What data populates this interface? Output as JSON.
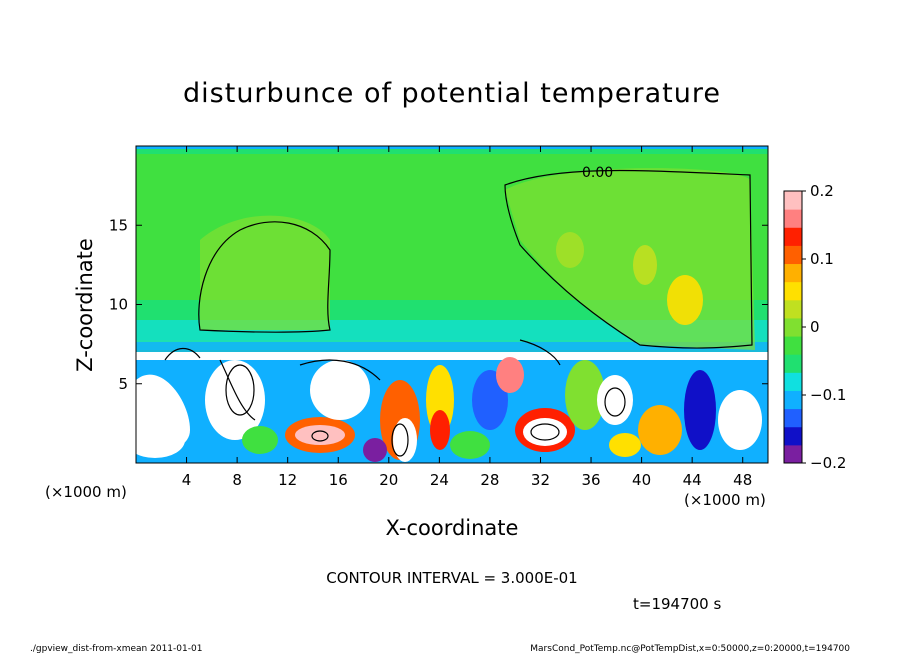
{
  "chart_data": {
    "type": "heatmap",
    "title": "disturbunce of potential temperature",
    "xlabel": "X-coordinate",
    "ylabel": "Z-coordinate",
    "x_unit_left": "(×1000 m)",
    "x_unit_right": "(×1000 m)",
    "xlim": [
      0,
      50
    ],
    "ylim": [
      0,
      20
    ],
    "x_ticks": [
      "4",
      "8",
      "12",
      "16",
      "20",
      "24",
      "28",
      "32",
      "36",
      "40",
      "44",
      "48"
    ],
    "x_tick_values": [
      4,
      8,
      12,
      16,
      20,
      24,
      28,
      32,
      36,
      40,
      44,
      48
    ],
    "y_ticks": [
      "5",
      "10",
      "15"
    ],
    "y_tick_values": [
      5,
      10,
      15
    ],
    "colorbar": {
      "range": [
        -0.2,
        0.2
      ],
      "tick_labels": [
        "0.2",
        "0.1",
        "0",
        "−0.1",
        "−0.2"
      ],
      "tick_values": [
        0.2,
        0.1,
        0,
        -0.1,
        -0.2
      ],
      "colors": [
        "#7a1fa0",
        "#1010c8",
        "#2060ff",
        "#10b0ff",
        "#10e0e0",
        "#20e070",
        "#40e040",
        "#80e030",
        "#c0e020",
        "#ffe000",
        "#ffb000",
        "#ff6000",
        "#ff2000",
        "#ff8080",
        "#ffc0c0"
      ]
    },
    "contour_label": "0.00",
    "contour_interval_text": "CONTOUR INTERVAL = 3.000E-01",
    "time_text": "t=194700 s",
    "footer_left": "./gpview_dist-from-xmean   2011-01-01",
    "footer_right": "MarsCond_PotTemp.nc@PotTempDist,x=0:50000,z=0:20000,t=194700"
  }
}
